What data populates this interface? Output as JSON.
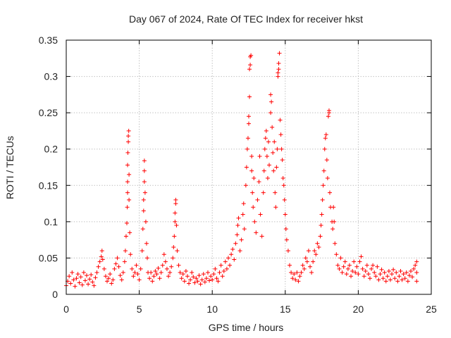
{
  "chart_data": {
    "type": "scatter",
    "title": "Day 067 of 2024, Rate Of TEC Index for receiver hkst",
    "xlabel": "GPS time / hours",
    "ylabel": "ROTI / TECUs",
    "xlim": [
      0,
      25
    ],
    "ylim": [
      0,
      0.35
    ],
    "xticks": [
      0,
      5,
      10,
      15,
      20,
      25
    ],
    "xtick_labels": [
      "0",
      "5",
      "10",
      "15",
      "20",
      "25"
    ],
    "yticks": [
      0,
      0.05,
      0.1,
      0.15,
      0.2,
      0.25,
      0.3,
      0.35
    ],
    "ytick_labels": [
      "0",
      "0.05",
      "0.1",
      "0.15",
      "0.2",
      "0.25",
      "0.3",
      "0.35"
    ],
    "grid": true,
    "marker": "+",
    "marker_color": "#ff0000",
    "series": [
      {
        "name": "ROTI",
        "points": [
          [
            0.0,
            0.012
          ],
          [
            0.1,
            0.018
          ],
          [
            0.2,
            0.025
          ],
          [
            0.3,
            0.015
          ],
          [
            0.4,
            0.03
          ],
          [
            0.5,
            0.02
          ],
          [
            0.6,
            0.011
          ],
          [
            0.7,
            0.022
          ],
          [
            0.8,
            0.028
          ],
          [
            0.9,
            0.016
          ],
          [
            1.0,
            0.024
          ],
          [
            1.1,
            0.013
          ],
          [
            1.2,
            0.03
          ],
          [
            1.3,
            0.019
          ],
          [
            1.4,
            0.026
          ],
          [
            1.5,
            0.014
          ],
          [
            1.6,
            0.021
          ],
          [
            1.7,
            0.027
          ],
          [
            1.8,
            0.017
          ],
          [
            1.9,
            0.012
          ],
          [
            2.0,
            0.023
          ],
          [
            2.1,
            0.03
          ],
          [
            2.2,
            0.038
          ],
          [
            2.3,
            0.045
          ],
          [
            2.4,
            0.052
          ],
          [
            2.45,
            0.06
          ],
          [
            2.5,
            0.048
          ],
          [
            2.6,
            0.035
          ],
          [
            2.7,
            0.025
          ],
          [
            2.8,
            0.018
          ],
          [
            2.9,
            0.022
          ],
          [
            3.0,
            0.028
          ],
          [
            3.1,
            0.015
          ],
          [
            3.2,
            0.02
          ],
          [
            3.3,
            0.035
          ],
          [
            3.4,
            0.042
          ],
          [
            3.5,
            0.05
          ],
          [
            3.6,
            0.038
          ],
          [
            3.7,
            0.026
          ],
          [
            3.8,
            0.02
          ],
          [
            3.9,
            0.03
          ],
          [
            4.0,
            0.045
          ],
          [
            4.05,
            0.06
          ],
          [
            4.1,
            0.08
          ],
          [
            4.15,
            0.098
          ],
          [
            4.18,
            0.12
          ],
          [
            4.2,
            0.14
          ],
          [
            4.2,
            0.155
          ],
          [
            4.2,
            0.178
          ],
          [
            4.22,
            0.195
          ],
          [
            4.25,
            0.21
          ],
          [
            4.25,
            0.218
          ],
          [
            4.28,
            0.225
          ],
          [
            4.3,
            0.165
          ],
          [
            4.3,
            0.13
          ],
          [
            4.35,
            0.085
          ],
          [
            4.4,
            0.055
          ],
          [
            4.5,
            0.035
          ],
          [
            4.6,
            0.025
          ],
          [
            4.7,
            0.03
          ],
          [
            4.8,
            0.04
          ],
          [
            4.9,
            0.028
          ],
          [
            5.0,
            0.02
          ],
          [
            5.1,
            0.035
          ],
          [
            5.2,
            0.06
          ],
          [
            5.25,
            0.09
          ],
          [
            5.3,
            0.115
          ],
          [
            5.3,
            0.13
          ],
          [
            5.35,
            0.155
          ],
          [
            5.35,
            0.17
          ],
          [
            5.35,
            0.184
          ],
          [
            5.4,
            0.14
          ],
          [
            5.45,
            0.1
          ],
          [
            5.5,
            0.07
          ],
          [
            5.55,
            0.05
          ],
          [
            5.6,
            0.03
          ],
          [
            5.7,
            0.022
          ],
          [
            5.8,
            0.03
          ],
          [
            5.9,
            0.018
          ],
          [
            6.0,
            0.025
          ],
          [
            6.1,
            0.032
          ],
          [
            6.2,
            0.028
          ],
          [
            6.3,
            0.036
          ],
          [
            6.4,
            0.022
          ],
          [
            6.5,
            0.03
          ],
          [
            6.6,
            0.04
          ],
          [
            6.7,
            0.055
          ],
          [
            6.8,
            0.045
          ],
          [
            6.9,
            0.035
          ],
          [
            7.0,
            0.025
          ],
          [
            7.1,
            0.03
          ],
          [
            7.2,
            0.038
          ],
          [
            7.3,
            0.05
          ],
          [
            7.35,
            0.065
          ],
          [
            7.4,
            0.08
          ],
          [
            7.45,
            0.1
          ],
          [
            7.45,
            0.112
          ],
          [
            7.5,
            0.125
          ],
          [
            7.5,
            0.13
          ],
          [
            7.55,
            0.095
          ],
          [
            7.6,
            0.06
          ],
          [
            7.7,
            0.04
          ],
          [
            7.8,
            0.03
          ],
          [
            7.9,
            0.022
          ],
          [
            8.0,
            0.028
          ],
          [
            8.1,
            0.018
          ],
          [
            8.2,
            0.032
          ],
          [
            8.3,
            0.025
          ],
          [
            8.4,
            0.015
          ],
          [
            8.5,
            0.02
          ],
          [
            8.6,
            0.03
          ],
          [
            8.7,
            0.024
          ],
          [
            8.8,
            0.016
          ],
          [
            8.9,
            0.022
          ],
          [
            9.0,
            0.018
          ],
          [
            9.1,
            0.026
          ],
          [
            9.2,
            0.014
          ],
          [
            9.3,
            0.02
          ],
          [
            9.4,
            0.028
          ],
          [
            9.5,
            0.017
          ],
          [
            9.6,
            0.022
          ],
          [
            9.7,
            0.03
          ],
          [
            9.8,
            0.019
          ],
          [
            9.9,
            0.025
          ],
          [
            10.0,
            0.02
          ],
          [
            10.1,
            0.028
          ],
          [
            10.2,
            0.035
          ],
          [
            10.3,
            0.022
          ],
          [
            10.4,
            0.018
          ],
          [
            10.5,
            0.03
          ],
          [
            10.6,
            0.04
          ],
          [
            10.7,
            0.025
          ],
          [
            10.8,
            0.032
          ],
          [
            10.9,
            0.045
          ],
          [
            11.0,
            0.035
          ],
          [
            11.1,
            0.05
          ],
          [
            11.2,
            0.04
          ],
          [
            11.3,
            0.055
          ],
          [
            11.4,
            0.062
          ],
          [
            11.5,
            0.048
          ],
          [
            11.6,
            0.07
          ],
          [
            11.7,
            0.082
          ],
          [
            11.75,
            0.095
          ],
          [
            11.8,
            0.105
          ],
          [
            11.9,
            0.06
          ],
          [
            12.0,
            0.075
          ],
          [
            12.1,
            0.11
          ],
          [
            12.15,
            0.125
          ],
          [
            12.2,
            0.09
          ],
          [
            12.3,
            0.15
          ],
          [
            12.35,
            0.175
          ],
          [
            12.4,
            0.2
          ],
          [
            12.45,
            0.215
          ],
          [
            12.5,
            0.235
          ],
          [
            12.5,
            0.245
          ],
          [
            12.55,
            0.272
          ],
          [
            12.55,
            0.31
          ],
          [
            12.6,
            0.316
          ],
          [
            12.6,
            0.327
          ],
          [
            12.65,
            0.329
          ],
          [
            12.7,
            0.19
          ],
          [
            12.7,
            0.17
          ],
          [
            12.75,
            0.14
          ],
          [
            12.8,
            0.12
          ],
          [
            12.85,
            0.16
          ],
          [
            12.9,
            0.1
          ],
          [
            13.0,
            0.085
          ],
          [
            13.1,
            0.13
          ],
          [
            13.2,
            0.155
          ],
          [
            13.25,
            0.19
          ],
          [
            13.3,
            0.11
          ],
          [
            13.4,
            0.08
          ],
          [
            13.5,
            0.14
          ],
          [
            13.55,
            0.17
          ],
          [
            13.6,
            0.2
          ],
          [
            13.65,
            0.215
          ],
          [
            13.7,
            0.225
          ],
          [
            13.75,
            0.19
          ],
          [
            13.8,
            0.16
          ],
          [
            13.85,
            0.21
          ],
          [
            13.9,
            0.178
          ],
          [
            14.0,
            0.25
          ],
          [
            14.0,
            0.275
          ],
          [
            14.05,
            0.265
          ],
          [
            14.1,
            0.23
          ],
          [
            14.15,
            0.195
          ],
          [
            14.2,
            0.17
          ],
          [
            14.25,
            0.21
          ],
          [
            14.3,
            0.14
          ],
          [
            14.35,
            0.12
          ],
          [
            14.4,
            0.175
          ],
          [
            14.45,
            0.2
          ],
          [
            14.5,
            0.3
          ],
          [
            14.5,
            0.305
          ],
          [
            14.55,
            0.31
          ],
          [
            14.55,
            0.318
          ],
          [
            14.6,
            0.332
          ],
          [
            14.65,
            0.24
          ],
          [
            14.7,
            0.22
          ],
          [
            14.75,
            0.2
          ],
          [
            14.8,
            0.185
          ],
          [
            14.85,
            0.16
          ],
          [
            14.9,
            0.15
          ],
          [
            14.95,
            0.13
          ],
          [
            15.0,
            0.11
          ],
          [
            15.05,
            0.09
          ],
          [
            15.1,
            0.075
          ],
          [
            15.2,
            0.06
          ],
          [
            15.3,
            0.04
          ],
          [
            15.4,
            0.03
          ],
          [
            15.5,
            0.022
          ],
          [
            15.6,
            0.028
          ],
          [
            15.7,
            0.02
          ],
          [
            15.8,
            0.03
          ],
          [
            15.9,
            0.018
          ],
          [
            16.0,
            0.025
          ],
          [
            16.1,
            0.03
          ],
          [
            16.2,
            0.04
          ],
          [
            16.3,
            0.035
          ],
          [
            16.4,
            0.05
          ],
          [
            16.5,
            0.045
          ],
          [
            16.6,
            0.06
          ],
          [
            16.7,
            0.038
          ],
          [
            16.8,
            0.03
          ],
          [
            16.9,
            0.045
          ],
          [
            17.0,
            0.06
          ],
          [
            17.1,
            0.055
          ],
          [
            17.2,
            0.07
          ],
          [
            17.3,
            0.065
          ],
          [
            17.4,
            0.08
          ],
          [
            17.45,
            0.095
          ],
          [
            17.5,
            0.11
          ],
          [
            17.55,
            0.13
          ],
          [
            17.6,
            0.15
          ],
          [
            17.65,
            0.17
          ],
          [
            17.7,
            0.2
          ],
          [
            17.75,
            0.215
          ],
          [
            17.8,
            0.22
          ],
          [
            17.85,
            0.185
          ],
          [
            17.9,
            0.16
          ],
          [
            17.95,
            0.245
          ],
          [
            18.0,
            0.25
          ],
          [
            18.0,
            0.253
          ],
          [
            18.05,
            0.14
          ],
          [
            18.1,
            0.12
          ],
          [
            18.2,
            0.1
          ],
          [
            18.25,
            0.09
          ],
          [
            18.3,
            0.12
          ],
          [
            18.35,
            0.1
          ],
          [
            18.4,
            0.07
          ],
          [
            18.5,
            0.055
          ],
          [
            18.6,
            0.04
          ],
          [
            18.7,
            0.035
          ],
          [
            18.8,
            0.05
          ],
          [
            18.9,
            0.03
          ],
          [
            19.0,
            0.038
          ],
          [
            19.1,
            0.045
          ],
          [
            19.2,
            0.028
          ],
          [
            19.3,
            0.035
          ],
          [
            19.4,
            0.04
          ],
          [
            19.5,
            0.025
          ],
          [
            19.6,
            0.032
          ],
          [
            19.7,
            0.045
          ],
          [
            19.8,
            0.03
          ],
          [
            19.9,
            0.038
          ],
          [
            20.0,
            0.028
          ],
          [
            20.1,
            0.045
          ],
          [
            20.2,
            0.052
          ],
          [
            20.3,
            0.035
          ],
          [
            20.4,
            0.025
          ],
          [
            20.5,
            0.032
          ],
          [
            20.6,
            0.04
          ],
          [
            20.7,
            0.028
          ],
          [
            20.8,
            0.022
          ],
          [
            20.9,
            0.035
          ],
          [
            21.0,
            0.04
          ],
          [
            21.1,
            0.03
          ],
          [
            21.2,
            0.025
          ],
          [
            21.3,
            0.038
          ],
          [
            21.4,
            0.02
          ],
          [
            21.5,
            0.028
          ],
          [
            21.6,
            0.034
          ],
          [
            21.7,
            0.022
          ],
          [
            21.8,
            0.03
          ],
          [
            21.9,
            0.018
          ],
          [
            22.0,
            0.025
          ],
          [
            22.1,
            0.032
          ],
          [
            22.2,
            0.02
          ],
          [
            22.3,
            0.028
          ],
          [
            22.4,
            0.034
          ],
          [
            22.5,
            0.022
          ],
          [
            22.6,
            0.03
          ],
          [
            22.7,
            0.018
          ],
          [
            22.8,
            0.025
          ],
          [
            22.9,
            0.032
          ],
          [
            23.0,
            0.02
          ],
          [
            23.1,
            0.028
          ],
          [
            23.2,
            0.022
          ],
          [
            23.3,
            0.03
          ],
          [
            23.4,
            0.018
          ],
          [
            23.5,
            0.026
          ],
          [
            23.6,
            0.032
          ],
          [
            23.7,
            0.024
          ],
          [
            23.8,
            0.035
          ],
          [
            23.9,
            0.04
          ],
          [
            24.0,
            0.045
          ],
          [
            24.0,
            0.03
          ],
          [
            24.0,
            0.018
          ]
        ]
      }
    ]
  }
}
